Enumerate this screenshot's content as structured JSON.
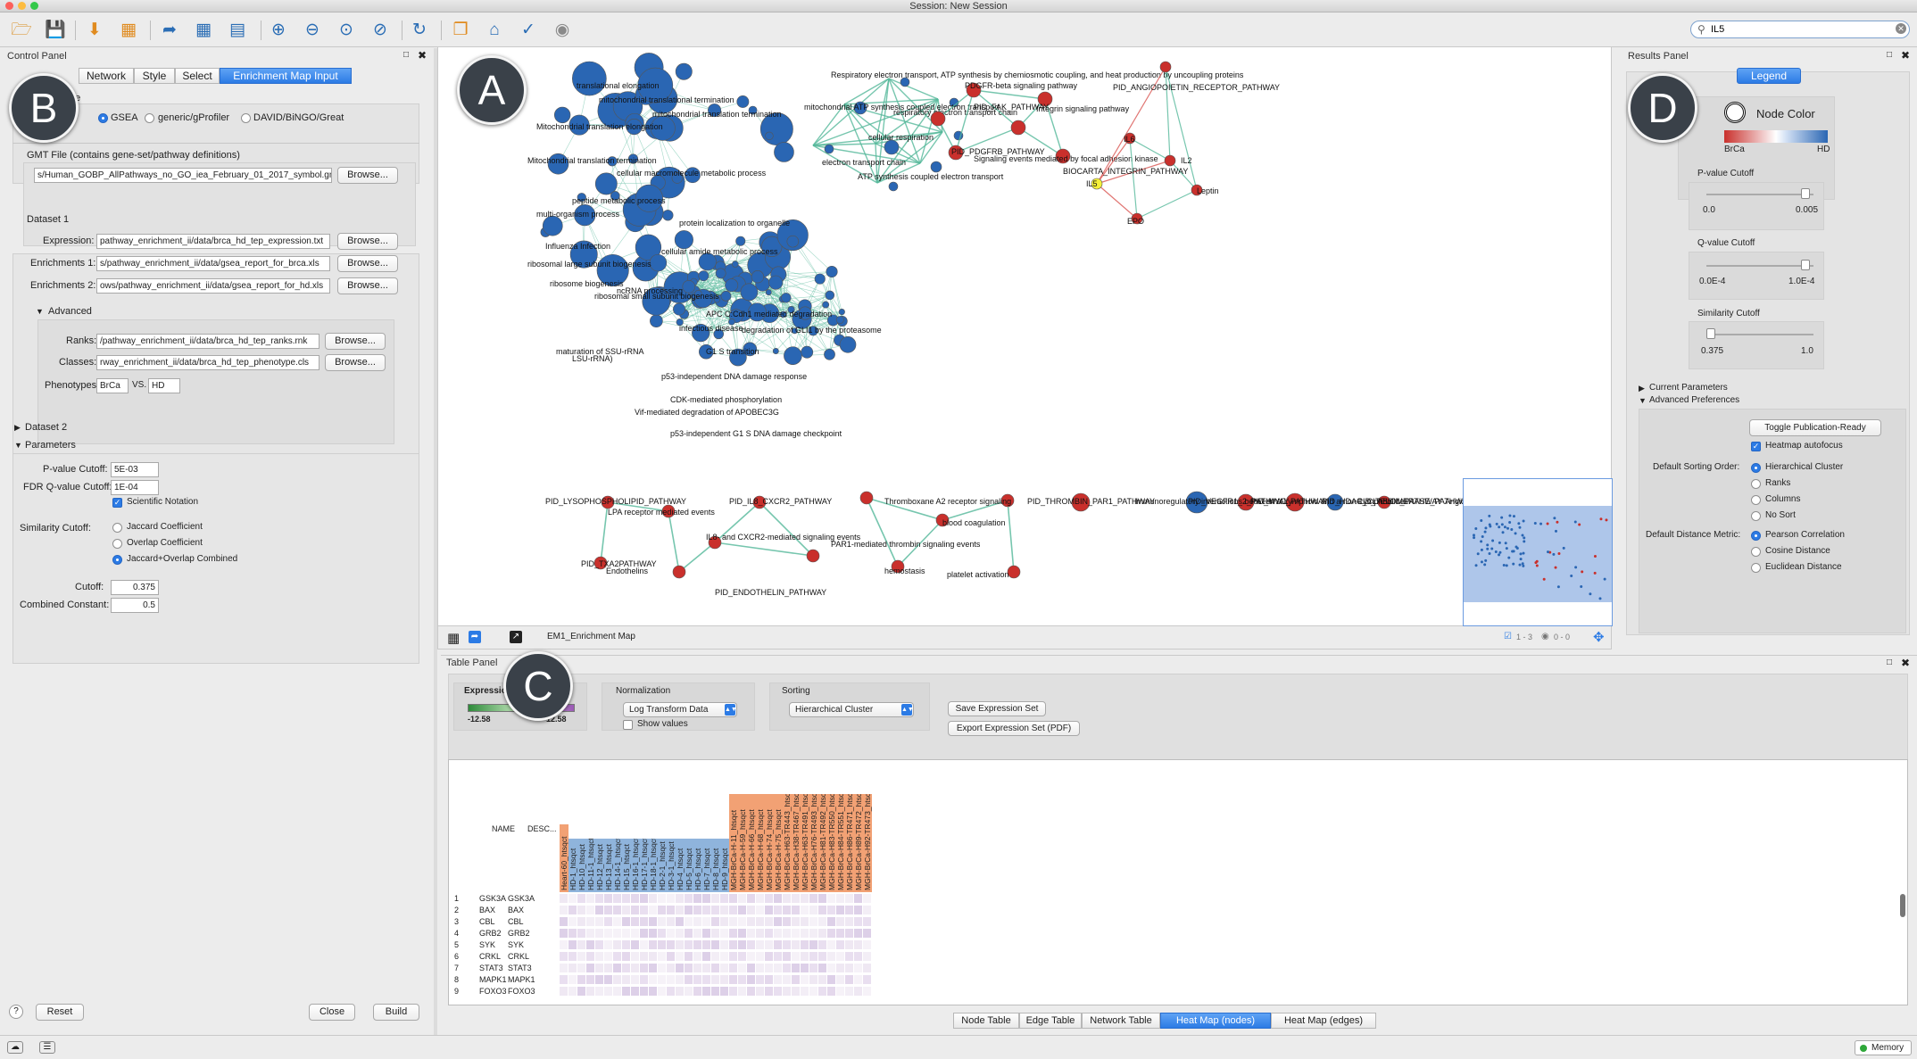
{
  "window": {
    "title": "Session: New Session"
  },
  "toolbar": {
    "icons": [
      "open-session-icon",
      "save-session-icon",
      "import-network-icon",
      "import-table-icon",
      "export-network-icon",
      "export-table-icon",
      "export-image-icon",
      "zoom-in-icon",
      "zoom-out-icon",
      "zoom-fit-icon",
      "zoom-selected-icon",
      "refresh-icon",
      "new-network-icon",
      "home-icon",
      "hide-icon",
      "show-icon"
    ],
    "search_value": "IL5"
  },
  "control_panel": {
    "title": "Control Panel",
    "tabs": [
      "Network",
      "Style",
      "Select",
      "Enrichment Map Input"
    ],
    "analysis_type_label": "pe",
    "analysis_types": [
      "GSEA",
      "generic/gProfiler",
      "DAVID/BiNGO/Great"
    ],
    "gmt_label": "GMT File (contains gene-set/pathway definitions)",
    "gmt_value": "s/Human_GOBP_AllPathways_no_GO_iea_February_01_2017_symbol.gmt",
    "browse": "Browse...",
    "dataset1": {
      "title": "Dataset 1",
      "expression_label": "Expression:",
      "expression_value": "pathway_enrichment_ii/data/brca_hd_tep_expression.txt",
      "enr1_label": "Enrichments 1:",
      "enr1_value": "s/pathway_enrichment_ii/data/gsea_report_for_brca.xls",
      "enr2_label": "Enrichments 2:",
      "enr2_value": "ows/pathway_enrichment_ii/data/gsea_report_for_hd.xls",
      "advanced": "Advanced",
      "ranks_label": "Ranks:",
      "ranks_value": "/pathway_enrichment_ii/data/brca_hd_tep_ranks.rnk",
      "classes_label": "Classes:",
      "classes_value": "rway_enrichment_ii/data/brca_hd_tep_phenotype.cls",
      "phenotypes_label": "Phenotypes:",
      "phenotype1": "BrCa",
      "vs": "VS.",
      "phenotype2": "HD"
    },
    "dataset2": "Dataset 2",
    "parameters": {
      "title": "Parameters",
      "pvalue_label": "P-value Cutoff:",
      "pvalue": "5E-03",
      "fdr_label": "FDR Q-value Cutoff:",
      "fdr": "1E-04",
      "sci_notation": "Scientific Notation",
      "similarity_label": "Similarity Cutoff:",
      "similarity_options": [
        "Jaccard Coefficient",
        "Overlap Coefficient",
        "Jaccard+Overlap Combined"
      ],
      "cutoff_label": "Cutoff:",
      "cutoff": "0.375",
      "combined_label": "Combined Constant:",
      "combined": "0.5"
    },
    "help": "?",
    "reset": "Reset",
    "close": "Close",
    "build": "Build"
  },
  "network_view": {
    "footer_title": "EM1_Enrichment Map",
    "footer_selected": "1 - 3",
    "footer_hidden": "0 - 0",
    "node_colors": {
      "brca": "#c9302c",
      "hd": "#2a66b3",
      "selected": "#f5f03a",
      "edge": "#55b89a"
    },
    "labels": [
      "translational elongation",
      "mitochondrial translational termination",
      "mitochondrial translation termination",
      "Mitochondrial translation elongation",
      "Mitochondrial translation termination",
      "cellular macromolecule metabolic process",
      "peptide metabolic process",
      "multi-organism process",
      "protein localization to organelle",
      "cellular amide metabolic process",
      "Influenza Infection",
      "ribosomal large subunit biogenesis",
      "ribosome biogenesis",
      "ribosomal small subunit biogenesis",
      "ncRNA processing",
      "maturation of SSU-rRNA",
      "LSU-rRNA)",
      "APC C:Cdh1 mediated degradation",
      "infectious disease",
      "G1 S transition",
      "p53-independent DNA damage response",
      "CDK-mediated phosphorylation",
      "Vif-mediated degradation of APOBEC3G",
      "p53-independent G1 S DNA damage checkpoint",
      "degradation of GLI1 by the proteasome",
      "Respiratory electron transport, ATP synthesis by chemiosmotic coupling, and heat production by uncoupling proteins",
      "mitochondrial ATP synthesis coupled electron transport",
      "respiratory electron transport chain",
      "cellular respiration",
      "electron transport chain",
      "ATP synthesis coupled electron transport",
      "PDGFR-beta signaling pathway",
      "PID_FAK_PATHWAY",
      "Integrin signaling pathway",
      "PID_PDGFRB_PATHWAY",
      "Signaling events mediated by focal adhesion kinase",
      "PID_ANGIOPOIETIN_RECEPTOR_PATHWAY",
      "BIOCARTA_INTEGRIN_PATHWAY",
      "IL6",
      "IL2",
      "IL5",
      "Leptin",
      "EPO",
      "PID_LYSOPHOSPHOLIPID_PATHWAY",
      "LPA receptor mediated events",
      "PID_IL8_CXCR2_PATHWAY",
      "IL8- and CXCR2-mediated signaling events",
      "PID_TXA2PATHWAY",
      "Endothelins",
      "PID_ENDOTHELIN_PATHWAY",
      "Thromboxane A2 receptor signaling",
      "blood coagulation",
      "hemostasis",
      "platelet activation",
      "PAR1-mediated thrombin signaling events",
      "PID_THROMBIN_PAR1_PATHWAY",
      "Immunoregulatory interactions between a Lymphoid and a non-Lymphoid cell",
      "PID_VEGFR1_2_PATHWAY",
      "PID_MYC_PATHWAY",
      "PID_HDAC_CLASSIII_PATHWAY",
      "PID_TELOMERASE_PATHWAY",
      "Angiogenesis"
    ]
  },
  "badges": {
    "a": "A",
    "b": "B",
    "c": "C",
    "d": "D"
  },
  "results_panel": {
    "title": "Results Panel",
    "legend_button": "Legend",
    "node_color": "Node Color",
    "phenotype1": "BrCa",
    "phenotype2": "HD",
    "pvalue_title": "P-value Cutoff",
    "pvalue_min": "0.0",
    "pvalue_max": "0.005",
    "pvalue_level": 0.96,
    "qvalue_title": "Q-value Cutoff",
    "qvalue_min": "0.0E-4",
    "qvalue_max": "1.0E-4",
    "qvalue_level": 0.96,
    "similarity_title": "Similarity Cutoff",
    "similarity_min": "0.375",
    "similarity_max": "1.0",
    "similarity_level": 0.0,
    "current_params": "Current Parameters",
    "advanced_prefs": "Advanced Preferences",
    "toggle_publication": "Toggle Publication-Ready",
    "heatmap_autofocus": "Heatmap autofocus",
    "sorting_label": "Default Sorting Order:",
    "sorting_options": [
      "Hierarchical Cluster",
      "Ranks",
      "Columns",
      "No Sort"
    ],
    "distance_label": "Default Distance Metric:",
    "distance_options": [
      "Pearson Correlation",
      "Cosine Distance",
      "Euclidean Distance"
    ]
  },
  "table_panel": {
    "title": "Table Panel",
    "expression_label": "Expression",
    "scale_min": "-12.58",
    "scale_max": "12.58",
    "normalization_label": "Normalization",
    "normalization_value": "Log Transform Data",
    "show_values": "Show values",
    "sorting_label": "Sorting",
    "sorting_value": "Hierarchical Cluster",
    "save_expression": "Save Expression Set",
    "export_expression": "Export Expression Set (PDF)",
    "name_header": "NAME",
    "desc_header": "DESC...",
    "columns": [
      {
        "label": "Heart-60_htsqct",
        "group": "brca"
      },
      {
        "label": "HD-1_htsqct",
        "group": "hd"
      },
      {
        "label": "HD-10_htsqct",
        "group": "hd"
      },
      {
        "label": "HD-11-1_htsqct",
        "group": "hd"
      },
      {
        "label": "HD-12_htsqct",
        "group": "hd"
      },
      {
        "label": "HD-13_htsqct",
        "group": "hd"
      },
      {
        "label": "HD-14-1_htsqct",
        "group": "hd"
      },
      {
        "label": "HD-15_htsqct",
        "group": "hd"
      },
      {
        "label": "HD-16-1_htsqct",
        "group": "hd"
      },
      {
        "label": "HD-17-1_htsqct",
        "group": "hd"
      },
      {
        "label": "HD-18-1_htsqct",
        "group": "hd"
      },
      {
        "label": "HD-2-1_htsqct",
        "group": "hd"
      },
      {
        "label": "HD-3-1_htsqct",
        "group": "hd"
      },
      {
        "label": "HD-4_htsqct",
        "group": "hd"
      },
      {
        "label": "HD-5_htsqct",
        "group": "hd"
      },
      {
        "label": "HD-6_htsqct",
        "group": "hd"
      },
      {
        "label": "HD-7_htsqct",
        "group": "hd"
      },
      {
        "label": "HD-8_htsqct",
        "group": "hd"
      },
      {
        "label": "HD-9_htsqct",
        "group": "hd"
      },
      {
        "label": "MGH-BrCa-H-11_htsqct",
        "group": "brca"
      },
      {
        "label": "MGH-BrCa-H-59_htsqct",
        "group": "brca"
      },
      {
        "label": "MGH-BrCa-H-66_htsqct",
        "group": "brca"
      },
      {
        "label": "MGH-BrCa-H-68_htsqct",
        "group": "brca"
      },
      {
        "label": "MGH-BrCa-H-74_htsqct",
        "group": "brca"
      },
      {
        "label": "MGH-BrCa-H-75_htsqct",
        "group": "brca"
      },
      {
        "label": "MGH-BrCa-H63-TR443_htsqct",
        "group": "brca"
      },
      {
        "label": "MGH-BrCa-H38-TR467_htsqct",
        "group": "brca"
      },
      {
        "label": "MGH-BrCa-H63-TR491_htsqct",
        "group": "brca"
      },
      {
        "label": "MGH-BrCa-H76-TR493_htsqct",
        "group": "brca"
      },
      {
        "label": "MGH-BrCa-H81-TR492_htsqct",
        "group": "brca"
      },
      {
        "label": "MGH-BrCa-H83-TR550_htsqct",
        "group": "brca"
      },
      {
        "label": "MGH-BrCa-H84-TR551_htsqct",
        "group": "brca"
      },
      {
        "label": "MGH-BrCa-H86-TR471_htsqct",
        "group": "brca"
      },
      {
        "label": "MGH-BrCa-H89-TR472_htsqct",
        "group": "brca"
      },
      {
        "label": "MGH-BrCa-H92-TR473_htsqct",
        "group": "brca"
      }
    ],
    "rows": [
      {
        "n": "1",
        "name": "GSK3A",
        "desc": "GSK3A"
      },
      {
        "n": "2",
        "name": "BAX",
        "desc": "BAX"
      },
      {
        "n": "3",
        "name": "CBL",
        "desc": "CBL"
      },
      {
        "n": "4",
        "name": "GRB2",
        "desc": "GRB2"
      },
      {
        "n": "5",
        "name": "SYK",
        "desc": "SYK"
      },
      {
        "n": "6",
        "name": "CRKL",
        "desc": "CRKL"
      },
      {
        "n": "7",
        "name": "STAT3",
        "desc": "STAT3"
      },
      {
        "n": "8",
        "name": "MAPK1",
        "desc": "MAPK1"
      },
      {
        "n": "9",
        "name": "FOXO3",
        "desc": "FOXO3"
      }
    ],
    "bottom_tabs": [
      "Node Table",
      "Edge Table",
      "Network Table",
      "Heat Map (nodes)",
      "Heat Map (edges)"
    ]
  },
  "status_bar": {
    "memory": "Memory"
  }
}
